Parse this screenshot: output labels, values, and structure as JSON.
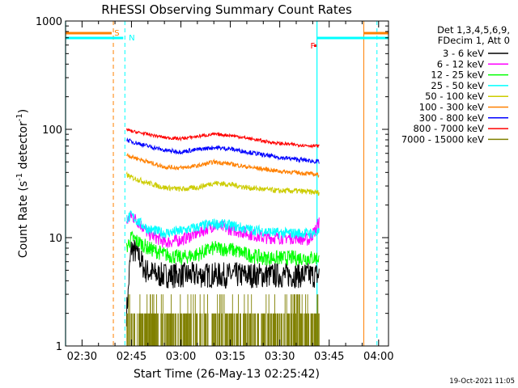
{
  "chart_data": {
    "type": "line",
    "title": "RHESSI Observing Summary Count Rates",
    "xlabel": "Start Time (26-May-13 02:25:42)",
    "ylabel_main": "Count Rate (s",
    "ylabel_sup1": "-1",
    "ylabel_mid": " detector",
    "ylabel_sup2": "-1",
    "ylabel_end": ")",
    "yscale": "log",
    "xlim_minutes_after_0225": [
      0,
      98
    ],
    "ylim": [
      1,
      1000
    ],
    "x_ticks": [
      {
        "label": "02:30",
        "m": 5
      },
      {
        "label": "02:45",
        "m": 20
      },
      {
        "label": "03:00",
        "m": 35
      },
      {
        "label": "03:15",
        "m": 50
      },
      {
        "label": "03:30",
        "m": 65
      },
      {
        "label": "03:45",
        "m": 80
      },
      {
        "label": "04:00",
        "m": 95
      }
    ],
    "y_ticks": [
      {
        "label": "1",
        "v": 1
      },
      {
        "label": "10",
        "v": 10
      },
      {
        "label": "100",
        "v": 100
      },
      {
        "label": "1000",
        "v": 1000
      }
    ],
    "legend_header": [
      "Det 1,3,4,5,6,9,",
      "FDecim 1, Att 0"
    ],
    "series": [
      {
        "name": "3 - 6 keV",
        "color": "#000000",
        "points": [
          [
            18.5,
            2
          ],
          [
            19,
            3
          ],
          [
            20,
            8
          ],
          [
            22,
            7
          ],
          [
            24,
            5
          ],
          [
            28,
            4.5
          ],
          [
            35,
            4.5
          ],
          [
            45,
            4.5
          ],
          [
            55,
            4.5
          ],
          [
            65,
            4.5
          ],
          [
            75,
            4.5
          ],
          [
            77,
            4.5
          ]
        ],
        "noise": 0.12
      },
      {
        "name": "6 - 12 keV",
        "color": "#ff00ff",
        "points": [
          [
            18.5,
            14
          ],
          [
            20,
            16
          ],
          [
            22,
            14
          ],
          [
            25,
            11
          ],
          [
            30,
            9
          ],
          [
            35,
            9.5
          ],
          [
            40,
            11
          ],
          [
            45,
            13
          ],
          [
            50,
            12
          ],
          [
            55,
            11
          ],
          [
            60,
            10
          ],
          [
            65,
            10
          ],
          [
            70,
            10
          ],
          [
            74,
            9.5
          ],
          [
            76,
            12
          ],
          [
            77,
            14
          ]
        ],
        "noise": 0.06
      },
      {
        "name": "12 - 25 keV",
        "color": "#00ff00",
        "points": [
          [
            18.5,
            8
          ],
          [
            20,
            10
          ],
          [
            25,
            8
          ],
          [
            30,
            7
          ],
          [
            35,
            6.5
          ],
          [
            40,
            7
          ],
          [
            45,
            8
          ],
          [
            50,
            7.8
          ],
          [
            55,
            7
          ],
          [
            60,
            6.5
          ],
          [
            65,
            6.5
          ],
          [
            70,
            6.5
          ],
          [
            77,
            6.5
          ]
        ],
        "noise": 0.07
      },
      {
        "name": "25 - 50 keV",
        "color": "#00ffff",
        "points": [
          [
            18.5,
            15
          ],
          [
            20,
            16
          ],
          [
            22,
            14
          ],
          [
            25,
            12
          ],
          [
            30,
            11
          ],
          [
            35,
            11.5
          ],
          [
            40,
            12.5
          ],
          [
            45,
            13.5
          ],
          [
            50,
            13
          ],
          [
            55,
            12
          ],
          [
            60,
            11.5
          ],
          [
            65,
            11
          ],
          [
            70,
            11
          ],
          [
            77,
            11
          ]
        ],
        "noise": 0.05
      },
      {
        "name": "50 - 100 keV",
        "color": "#cccc00",
        "points": [
          [
            18.5,
            38
          ],
          [
            20,
            36
          ],
          [
            25,
            32
          ],
          [
            30,
            29
          ],
          [
            35,
            28
          ],
          [
            40,
            29
          ],
          [
            45,
            32
          ],
          [
            50,
            31
          ],
          [
            55,
            29
          ],
          [
            60,
            28
          ],
          [
            65,
            27
          ],
          [
            70,
            27
          ],
          [
            77,
            26
          ]
        ],
        "noise": 0.025
      },
      {
        "name": "100 - 300 keV",
        "color": "#ff8000",
        "points": [
          [
            18.5,
            58
          ],
          [
            20,
            56
          ],
          [
            25,
            50
          ],
          [
            30,
            45
          ],
          [
            35,
            44
          ],
          [
            40,
            46
          ],
          [
            45,
            50
          ],
          [
            50,
            48
          ],
          [
            55,
            45
          ],
          [
            60,
            43
          ],
          [
            65,
            41
          ],
          [
            70,
            40
          ],
          [
            77,
            38
          ]
        ],
        "noise": 0.02
      },
      {
        "name": "300 - 800 keV",
        "color": "#0000ff",
        "points": [
          [
            18.5,
            80
          ],
          [
            20,
            77
          ],
          [
            25,
            70
          ],
          [
            30,
            64
          ],
          [
            35,
            62
          ],
          [
            40,
            65
          ],
          [
            45,
            68
          ],
          [
            50,
            66
          ],
          [
            55,
            62
          ],
          [
            60,
            58
          ],
          [
            65,
            55
          ],
          [
            70,
            53
          ],
          [
            77,
            50
          ]
        ],
        "noise": 0.02
      },
      {
        "name": "800 - 7000 keV",
        "color": "#ff0000",
        "points": [
          [
            18.5,
            100
          ],
          [
            20,
            96
          ],
          [
            25,
            90
          ],
          [
            30,
            84
          ],
          [
            35,
            82
          ],
          [
            40,
            86
          ],
          [
            45,
            90
          ],
          [
            50,
            88
          ],
          [
            55,
            83
          ],
          [
            60,
            78
          ],
          [
            65,
            74
          ],
          [
            70,
            72
          ],
          [
            77,
            70
          ]
        ],
        "noise": 0.015
      },
      {
        "name": "7000 - 15000 keV",
        "color": "#808000",
        "points": [
          [
            18.5,
            1.5
          ],
          [
            77,
            1.5
          ]
        ],
        "noise": 0.4
      }
    ],
    "markers": [
      {
        "label": "S",
        "color": "#ff8000"
      },
      {
        "label": "N",
        "color": "#00ffff"
      },
      {
        "label": "F",
        "color": "#ff0000"
      }
    ],
    "date_stamp": "19-Oct-2021 11:05"
  }
}
